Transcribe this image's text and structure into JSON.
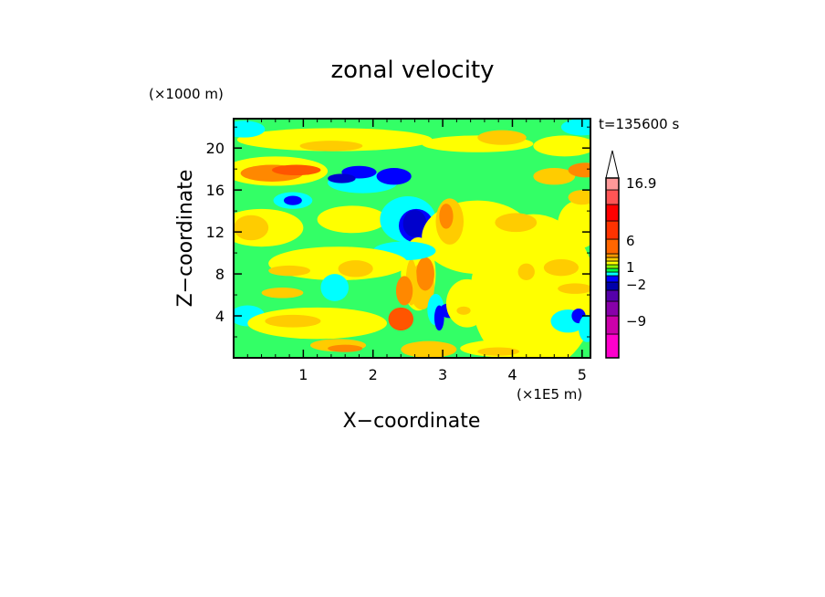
{
  "chart_data": {
    "type": "heatmap",
    "title": "zonal velocity",
    "xlabel": "X−coordinate",
    "ylabel": "Z−coordinate",
    "x_unit": "(×1E5 m)",
    "y_unit": "(×1000 m)",
    "time_label": "t=135600 s",
    "xlim": [
      0,
      5.12
    ],
    "ylim": [
      0,
      22.8
    ],
    "x_ticks": [
      1,
      2,
      3,
      4,
      5
    ],
    "y_ticks": [
      4,
      8,
      12,
      16,
      20
    ],
    "x_tick_labels": [
      "1",
      "2",
      "3",
      "4",
      "5"
    ],
    "y_tick_labels": [
      "4",
      "8",
      "12",
      "16",
      "20"
    ],
    "colorbar": {
      "labels": [
        "16.9",
        "6",
        "1",
        "−2",
        "−9"
      ],
      "level_colors": [
        "#ff00cc",
        "#cc00aa",
        "#8800aa",
        "#5500aa",
        "#0000aa",
        "#0000ff",
        "#00ffff",
        "#00ff44",
        "#88ff00",
        "#ffff00",
        "#ffcc00",
        "#ff9900",
        "#ff6600",
        "#ff3300",
        "#ff0000",
        "#ff5555",
        "#ff9999",
        "#ffbbbb"
      ]
    },
    "field_colors": {
      "very_neg": "#cc00aa",
      "strong_neg": "#0000cc",
      "neg": "#0000ff",
      "light_neg": "#00ffff",
      "near_zero": "#33ff66",
      "light_pos": "#ffff00",
      "pos": "#ffcc00",
      "strong_pos": "#ff8800",
      "very_pos": "#ff5500"
    }
  }
}
